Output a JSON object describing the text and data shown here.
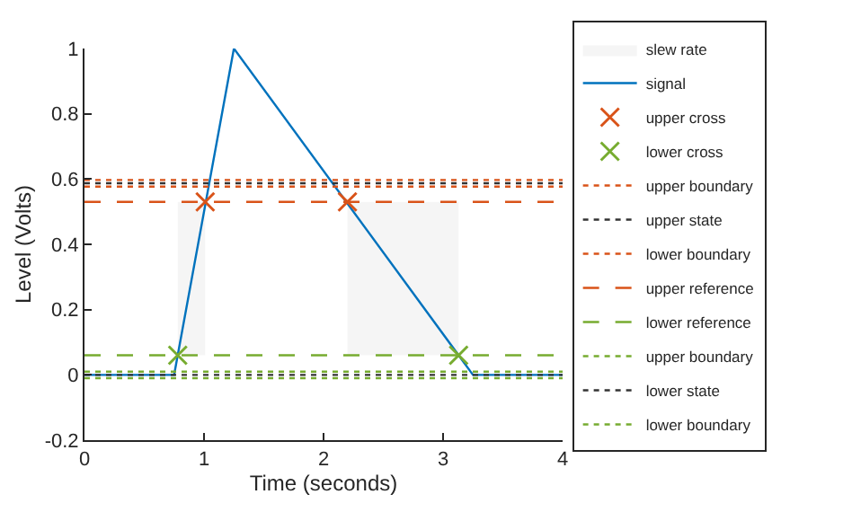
{
  "chart_data": {
    "type": "line",
    "xlabel": "Time (seconds)",
    "ylabel": "Level (Volts)",
    "xlim": [
      0,
      4
    ],
    "xticks": [
      0,
      1,
      2,
      3,
      4
    ],
    "ylim": [
      -0.2,
      1
    ],
    "yticks": [
      -0.2,
      0,
      0.2,
      0.4,
      0.6,
      0.8,
      1
    ],
    "grid": false,
    "legend": "right",
    "series": [
      {
        "name": "slew rate",
        "type": "area",
        "color": "#f5f5f5",
        "x": [
          0.78,
          1.01,
          1.01,
          0.78,
          0.78,
          null,
          2.2,
          3.13,
          3.13,
          2.2,
          2.2
        ],
        "values": [
          0.06,
          0.06,
          0.53,
          0.53,
          0.06,
          null,
          0.06,
          0.06,
          0.53,
          0.53,
          0.06
        ]
      },
      {
        "name": "signal",
        "color": "#0072bd",
        "line_style": "solid",
        "x": [
          0,
          0.75,
          1.25,
          3.25,
          4
        ],
        "values": [
          0,
          0,
          1,
          0,
          0
        ]
      },
      {
        "name": "upper cross",
        "type": "scatter",
        "marker": "cross",
        "color": "#d95319",
        "x": [
          1.01,
          2.2
        ],
        "values": [
          0.53,
          0.53
        ]
      },
      {
        "name": "lower cross",
        "type": "scatter",
        "marker": "cross",
        "color": "#77ac30",
        "x": [
          0.78,
          3.13
        ],
        "values": [
          0.06,
          0.06
        ]
      },
      {
        "name": "upper boundary",
        "type": "line",
        "line_style": "dotted",
        "color": "#d95319",
        "x": [
          0,
          4
        ],
        "values": [
          0.597,
          0.597
        ]
      },
      {
        "name": "upper state",
        "type": "line",
        "line_style": "dotted",
        "color": "#333333",
        "x": [
          0,
          4
        ],
        "values": [
          0.587,
          0.587
        ]
      },
      {
        "name": "lower boundary",
        "type": "line",
        "line_style": "dotted",
        "color": "#d95319",
        "x": [
          0,
          4
        ],
        "values": [
          0.577,
          0.577
        ]
      },
      {
        "name": "upper reference",
        "type": "line",
        "line_style": "dashed",
        "color": "#d95319",
        "x": [
          0,
          4
        ],
        "values": [
          0.53,
          0.53
        ]
      },
      {
        "name": "lower reference",
        "type": "line",
        "line_style": "dashed",
        "color": "#77ac30",
        "x": [
          0,
          4
        ],
        "values": [
          0.06,
          0.06
        ]
      },
      {
        "name": "upper boundary",
        "type": "line",
        "line_style": "dotted",
        "color": "#77ac30",
        "x": [
          0,
          4
        ],
        "values": [
          0.01,
          0.01
        ]
      },
      {
        "name": "lower state",
        "type": "line",
        "line_style": "dotted",
        "color": "#333333",
        "x": [
          0,
          4
        ],
        "values": [
          0,
          0
        ]
      },
      {
        "name": "lower boundary",
        "type": "line",
        "line_style": "dotted",
        "color": "#77ac30",
        "x": [
          0,
          4
        ],
        "values": [
          -0.01,
          -0.01
        ]
      }
    ]
  }
}
